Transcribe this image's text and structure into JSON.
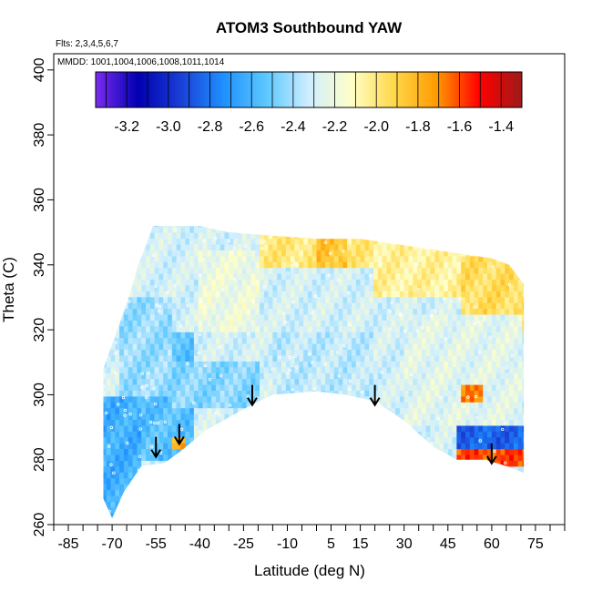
{
  "chart_data": {
    "type": "heatmap",
    "title": "ATOM3 Southbound YAW",
    "subtitle_flights": "Flts: 2,3,4,5,6,7",
    "subtitle_dates": "MMDD: 1001,1004,1006,1008,1011,1014",
    "xlabel": "Latitude (deg N)",
    "ylabel": "Theta (C)",
    "xlim": [
      -90,
      85
    ],
    "ylim": [
      260,
      405
    ],
    "x_ticks": [
      "-85",
      "-70",
      "-55",
      "-40",
      "-25",
      "-10",
      "5",
      "15",
      "30",
      "45",
      "60",
      "75"
    ],
    "y_ticks": [
      "260",
      "280",
      "300",
      "320",
      "340",
      "360",
      "380",
      "400"
    ],
    "colorbar_ticks": [
      "-3.2",
      "-3.0",
      "-2.8",
      "-2.6",
      "-2.4",
      "-2.2",
      "-2.0",
      "-1.8",
      "-1.6",
      "-1.4"
    ],
    "colorbar_range": [
      -3.35,
      -1.3
    ],
    "colorbar_colors": [
      "#7b2cf0",
      "#0000b0",
      "#1a3fd6",
      "#1e90ff",
      "#5cc8ff",
      "#cfeeff",
      "#ffffc8",
      "#ffd84a",
      "#ff9a00",
      "#ff0000",
      "#9e1a1a"
    ],
    "data_region": {
      "upper_boundary": [
        [
          -73,
          308
        ],
        [
          -69,
          318
        ],
        [
          -65,
          328
        ],
        [
          -61,
          340
        ],
        [
          -58,
          347
        ],
        [
          -56,
          352
        ],
        [
          -40,
          352
        ],
        [
          -30,
          350
        ],
        [
          -15,
          349
        ],
        [
          0,
          348
        ],
        [
          15,
          348
        ],
        [
          30,
          346
        ],
        [
          45,
          344
        ],
        [
          60,
          342
        ],
        [
          66,
          340
        ],
        [
          71,
          334
        ],
        [
          71,
          310
        ]
      ],
      "lower_boundary": [
        [
          -73,
          268
        ],
        [
          -70,
          262
        ],
        [
          -66,
          270
        ],
        [
          -60,
          278
        ],
        [
          -52,
          279
        ],
        [
          -46,
          283
        ],
        [
          -38,
          289
        ],
        [
          -30,
          293
        ],
        [
          -22,
          297
        ],
        [
          -15,
          300
        ],
        [
          0,
          301
        ],
        [
          10,
          300
        ],
        [
          20,
          298
        ],
        [
          30,
          292
        ],
        [
          40,
          284
        ],
        [
          48,
          280
        ],
        [
          58,
          280
        ],
        [
          65,
          278
        ],
        [
          71,
          276
        ]
      ]
    },
    "arrows_latitude": [
      -55,
      -47,
      -22,
      20,
      60
    ],
    "arrows_theta": [
      287,
      291,
      303,
      303,
      285
    ],
    "colormap_default": -2.3,
    "colormap_regions": [
      {
        "lat": [
          -75,
          -60
        ],
        "theta": [
          260,
          300
        ],
        "value": -2.62
      },
      {
        "lat": [
          -60,
          -42
        ],
        "theta": [
          280,
          320
        ],
        "value": -2.55
      },
      {
        "lat": [
          -68,
          -50
        ],
        "theta": [
          300,
          330
        ],
        "value": -2.42
      },
      {
        "lat": [
          -40,
          -20
        ],
        "theta": [
          320,
          345
        ],
        "value": -2.2
      },
      {
        "lat": [
          -20,
          20
        ],
        "theta": [
          340,
          352
        ],
        "value": -2.0
      },
      {
        "lat": [
          0,
          10
        ],
        "theta": [
          340,
          350
        ],
        "value": -1.85
      },
      {
        "lat": [
          20,
          70
        ],
        "theta": [
          330,
          348
        ],
        "value": -2.05
      },
      {
        "lat": [
          50,
          72
        ],
        "theta": [
          320,
          342
        ],
        "value": -1.95
      },
      {
        "lat": [
          30,
          70
        ],
        "theta": [
          290,
          325
        ],
        "value": -2.25
      },
      {
        "lat": [
          50,
          57
        ],
        "theta": [
          298,
          304
        ],
        "value": -1.7
      },
      {
        "lat": [
          48,
          72
        ],
        "theta": [
          283,
          291
        ],
        "value": -2.85
      },
      {
        "lat": [
          48,
          72
        ],
        "theta": [
          278,
          283
        ],
        "value": -1.6
      },
      {
        "lat": [
          -15,
          20
        ],
        "theta": [
          300,
          320
        ],
        "value": -2.35
      },
      {
        "lat": [
          -50,
          -20
        ],
        "theta": [
          296,
          310
        ],
        "value": -2.45
      },
      {
        "lat": [
          -50,
          -45
        ],
        "theta": [
          283,
          287
        ],
        "value": -1.75
      }
    ]
  }
}
